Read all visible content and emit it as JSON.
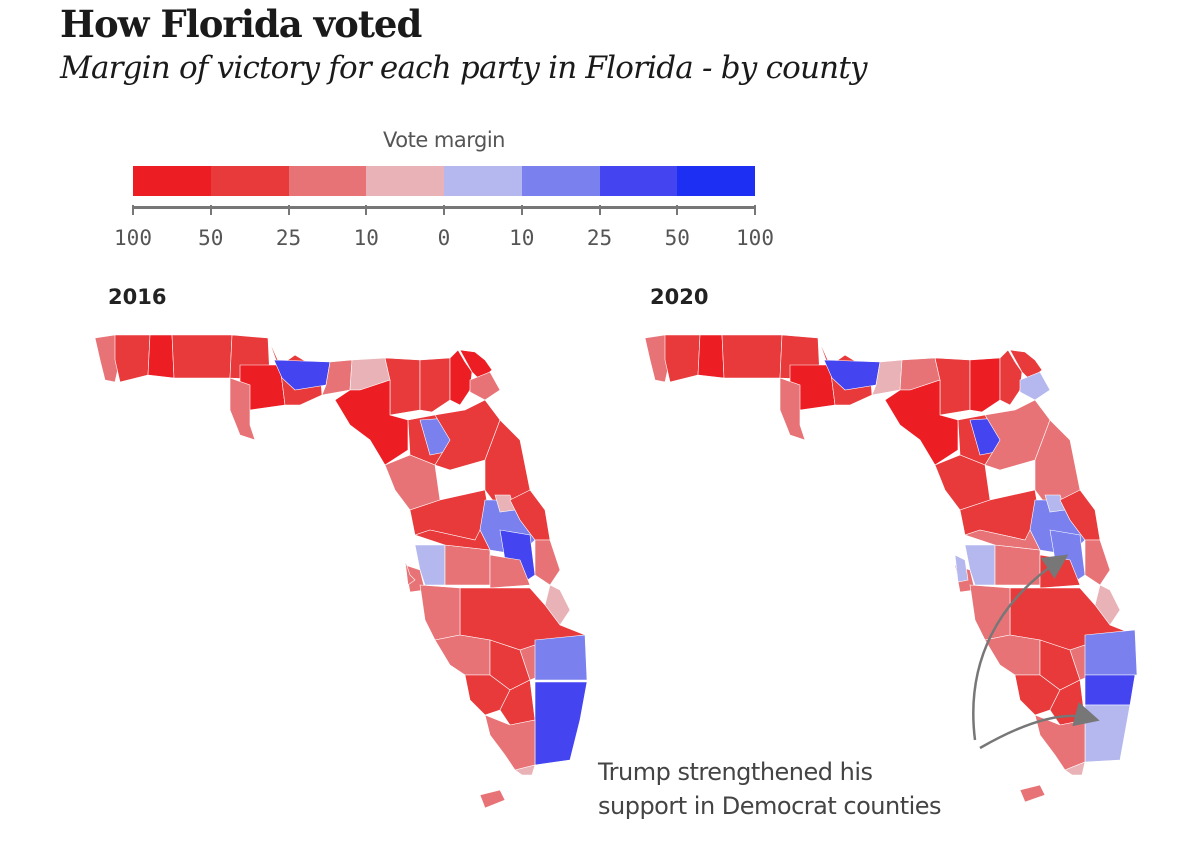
{
  "title": "How Florida voted",
  "subtitle": "Margin of victory for each party in Florida - by county",
  "legend": {
    "title": "Vote margin",
    "labels": [
      "100",
      "50",
      "25",
      "10",
      "0",
      "10",
      "25",
      "50",
      "100"
    ],
    "colors": [
      "#ec1e24",
      "#e8393b",
      "#e87376",
      "#e9b2b6",
      "#b4b8ee",
      "#7a80ee",
      "#4444f0",
      "#1d2ff2"
    ]
  },
  "maps": [
    {
      "year": "2016"
    },
    {
      "year": "2020"
    }
  ],
  "annotation": {
    "line1": "Trump strengthened his",
    "line2": "support in Democrat counties"
  },
  "colors": {
    "r100": "#ec1e24",
    "r50": "#e8393b",
    "r25": "#e87376",
    "r10": "#e9b2b6",
    "d10": "#b4b8ee",
    "d25": "#7a80ee",
    "d50": "#4444f0",
    "d100": "#1d2ff2"
  }
}
